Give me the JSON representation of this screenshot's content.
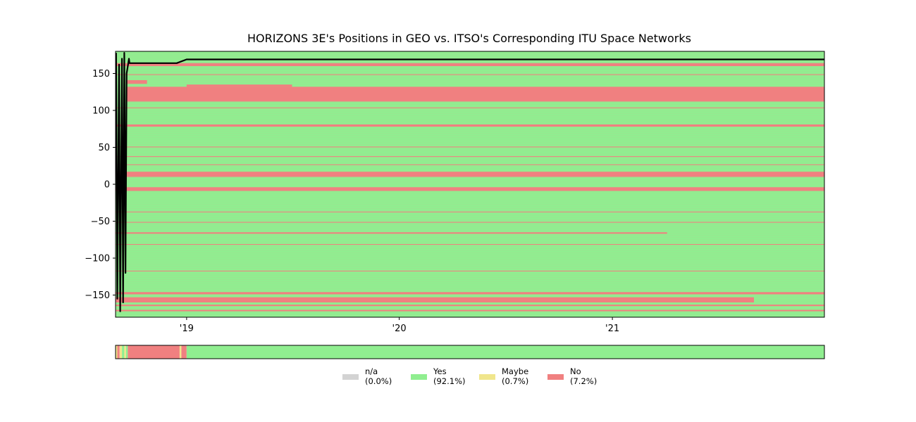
{
  "chart_data": {
    "type": "heatmap",
    "title": "HORIZONS 3E's Positions in GEO vs. ITSO's Corresponding ITU Space Networks",
    "xlabel": "",
    "ylabel": "",
    "x_range": [
      "2018-09-01",
      "2021-12-31"
    ],
    "ylim": [
      -180,
      180
    ],
    "y_ticks": [
      {
        "value": 150,
        "label": "150"
      },
      {
        "value": 100,
        "label": "100"
      },
      {
        "value": 50,
        "label": "50"
      },
      {
        "value": 0,
        "label": "0"
      },
      {
        "value": -50,
        "label": "−50"
      },
      {
        "value": -100,
        "label": "−100"
      },
      {
        "value": -150,
        "label": "−150"
      }
    ],
    "x_ticks": [
      {
        "value": "2019-01-01",
        "label": "'19"
      },
      {
        "value": "2020-01-01",
        "label": "'20"
      },
      {
        "value": "2021-01-01",
        "label": "'21"
      }
    ],
    "background_status": "Yes",
    "no_bands": [
      {
        "from": 160,
        "to": 164,
        "start": "2018-09-01",
        "end": "2021-12-31"
      },
      {
        "from": 148,
        "to": 149,
        "start": "2018-09-01",
        "end": "2021-12-31"
      },
      {
        "from": 136,
        "to": 141,
        "start": "2018-09-20",
        "end": "2018-10-25"
      },
      {
        "from": 132,
        "to": 135,
        "start": "2019-01-01",
        "end": "2019-07-01"
      },
      {
        "from": 112,
        "to": 132,
        "start": "2018-09-20",
        "end": "2021-12-31"
      },
      {
        "from": 103,
        "to": 104,
        "start": "2018-09-01",
        "end": "2021-12-31"
      },
      {
        "from": 78,
        "to": 81,
        "start": "2018-09-01",
        "end": "2021-12-31"
      },
      {
        "from": 50,
        "to": 51,
        "start": "2018-09-01",
        "end": "2021-12-31"
      },
      {
        "from": 37,
        "to": 38,
        "start": "2018-09-01",
        "end": "2021-12-31"
      },
      {
        "from": 26,
        "to": 27,
        "start": "2018-09-01",
        "end": "2021-12-31"
      },
      {
        "from": 10,
        "to": 17,
        "start": "2018-09-01",
        "end": "2021-12-31"
      },
      {
        "from": -9,
        "to": -4,
        "start": "2018-09-01",
        "end": "2021-12-31"
      },
      {
        "from": -38,
        "to": -37,
        "start": "2018-09-01",
        "end": "2021-12-31"
      },
      {
        "from": -52,
        "to": -51,
        "start": "2018-09-01",
        "end": "2021-12-31"
      },
      {
        "from": -67,
        "to": -65,
        "start": "2018-09-01",
        "end": "2021-04-05"
      },
      {
        "from": -82,
        "to": -81,
        "start": "2018-09-01",
        "end": "2021-12-31"
      },
      {
        "from": -118,
        "to": -117,
        "start": "2018-09-01",
        "end": "2021-12-31"
      },
      {
        "from": -149,
        "to": -146,
        "start": "2018-09-01",
        "end": "2021-12-31"
      },
      {
        "from": -160,
        "to": -153,
        "start": "2018-09-01",
        "end": "2021-09-01"
      },
      {
        "from": -165,
        "to": -163,
        "start": "2018-09-01",
        "end": "2021-12-31"
      },
      {
        "from": -172,
        "to": -170,
        "start": "2018-09-01",
        "end": "2021-12-31"
      }
    ],
    "position_track": [
      {
        "date": "2018-09-02",
        "lon": 178
      },
      {
        "date": "2018-09-04",
        "lon": -155
      },
      {
        "date": "2018-09-07",
        "lon": 162
      },
      {
        "date": "2018-09-09",
        "lon": -172
      },
      {
        "date": "2018-09-12",
        "lon": 170
      },
      {
        "date": "2018-09-14",
        "lon": -160
      },
      {
        "date": "2018-09-16",
        "lon": 178
      },
      {
        "date": "2018-09-18",
        "lon": -120
      },
      {
        "date": "2018-09-20",
        "lon": 150
      },
      {
        "date": "2018-09-22",
        "lon": 160
      },
      {
        "date": "2018-09-24",
        "lon": 170
      },
      {
        "date": "2018-09-25",
        "lon": 164
      },
      {
        "date": "2018-12-15",
        "lon": 164
      },
      {
        "date": "2019-01-01",
        "lon": 169
      },
      {
        "date": "2021-12-31",
        "lon": 169
      }
    ],
    "summary_strip": [
      {
        "start": "2018-09-01",
        "end": "2018-09-04",
        "status": "Maybe"
      },
      {
        "start": "2018-09-04",
        "end": "2018-09-08",
        "status": "No"
      },
      {
        "start": "2018-09-08",
        "end": "2018-09-12",
        "status": "Maybe"
      },
      {
        "start": "2018-09-12",
        "end": "2018-09-16",
        "status": "Yes"
      },
      {
        "start": "2018-09-16",
        "end": "2018-09-19",
        "status": "Maybe"
      },
      {
        "start": "2018-09-19",
        "end": "2018-09-22",
        "status": "Yes"
      },
      {
        "start": "2018-09-22",
        "end": "2018-12-20",
        "status": "No"
      },
      {
        "start": "2018-12-20",
        "end": "2018-12-23",
        "status": "Maybe"
      },
      {
        "start": "2018-12-23",
        "end": "2019-01-01",
        "status": "No"
      },
      {
        "start": "2019-01-01",
        "end": "2021-12-31",
        "status": "Yes"
      }
    ],
    "legend": [
      {
        "label": "n/a",
        "pct": "(0.0%)",
        "color": "#d3d3d3"
      },
      {
        "label": "Yes",
        "pct": "(92.1%)",
        "color": "#90ee90"
      },
      {
        "label": "Maybe",
        "pct": "(0.7%)",
        "color": "#f0e68c"
      },
      {
        "label": "No",
        "pct": "(7.2%)",
        "color": "#f08080"
      }
    ],
    "legend_position": "bottom-center",
    "colors": {
      "n/a": "#d3d3d3",
      "Yes": "#90ee90",
      "Maybe": "#f0e68c",
      "No": "#f08080",
      "track": "#000000"
    }
  }
}
